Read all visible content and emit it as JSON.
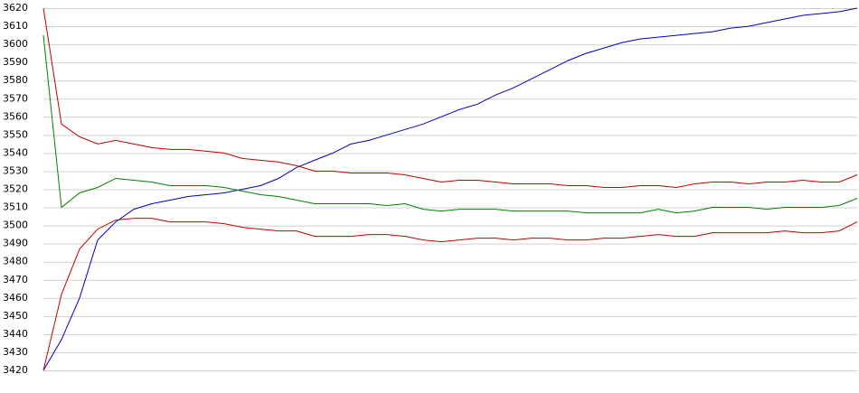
{
  "chart_data": {
    "type": "line",
    "ylim": [
      3420,
      3620
    ],
    "yticks": [
      3420,
      3430,
      3440,
      3450,
      3460,
      3470,
      3480,
      3490,
      3500,
      3510,
      3520,
      3530,
      3540,
      3550,
      3560,
      3570,
      3580,
      3590,
      3600,
      3610,
      3620
    ],
    "grid": true,
    "series": [
      {
        "color": "#0000c0",
        "values": [
          3420,
          3437,
          3460,
          3492,
          3502,
          3509,
          3512,
          3514,
          3516,
          3517,
          3518,
          3520,
          3522,
          3526,
          3532,
          3536,
          3540,
          3545,
          3547,
          3550,
          3553,
          3556,
          3560,
          3564,
          3567,
          3572,
          3576,
          3581,
          3586,
          3591,
          3595,
          3598,
          3601,
          3603,
          3604,
          3605,
          3606,
          3607,
          3609,
          3610,
          3612,
          3614,
          3616,
          3617,
          3618,
          3620
        ]
      },
      {
        "color": "#c00000",
        "values": [
          3620,
          3556,
          3549,
          3545,
          3547,
          3545,
          3543,
          3542,
          3542,
          3541,
          3540,
          3537,
          3536,
          3535,
          3533,
          3530,
          3530,
          3529,
          3529,
          3529,
          3528,
          3526,
          3524,
          3525,
          3525,
          3524,
          3523,
          3523,
          3523,
          3522,
          3522,
          3521,
          3521,
          3522,
          3522,
          3521,
          3523,
          3524,
          3524,
          3523,
          3524,
          3524,
          3525,
          3524,
          3524,
          3528
        ]
      },
      {
        "color": "#008000",
        "values": [
          3605,
          3510,
          3518,
          3521,
          3526,
          3525,
          3524,
          3522,
          3522,
          3522,
          3521,
          3519,
          3517,
          3516,
          3514,
          3512,
          3512,
          3512,
          3512,
          3511,
          3512,
          3509,
          3508,
          3509,
          3509,
          3509,
          3508,
          3508,
          3508,
          3508,
          3507,
          3507,
          3507,
          3507,
          3509,
          3507,
          3508,
          3510,
          3510,
          3510,
          3509,
          3510,
          3510,
          3510,
          3511,
          3515
        ]
      },
      {
        "color": "#c00000",
        "values": [
          3420,
          3462,
          3487,
          3498,
          3503,
          3504,
          3504,
          3502,
          3502,
          3502,
          3501,
          3499,
          3498,
          3497,
          3497,
          3494,
          3494,
          3494,
          3495,
          3495,
          3494,
          3492,
          3491,
          3492,
          3493,
          3493,
          3492,
          3493,
          3493,
          3492,
          3492,
          3493,
          3493,
          3494,
          3495,
          3494,
          3494,
          3496,
          3496,
          3496,
          3496,
          3497,
          3496,
          3496,
          3497,
          3502
        ]
      }
    ]
  }
}
